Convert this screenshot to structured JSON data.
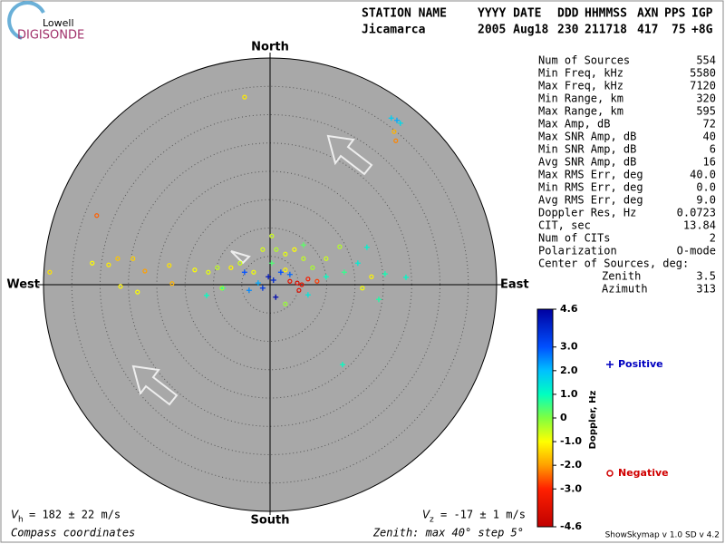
{
  "logo": {
    "top": "Lowell",
    "bottom": "DIGISONDE"
  },
  "header": {
    "labels": [
      "STATION NAME",
      "YYYY DATE",
      "DDD",
      "HHMMSS",
      "AXN",
      "PPS",
      "IGP"
    ],
    "values": [
      "Jicamarca",
      "2005 Aug18",
      "230",
      "211718",
      "417",
      "75",
      "+8G"
    ]
  },
  "stats": {
    "rows": [
      [
        "Num of Sources",
        "554"
      ],
      [
        "Min Freq, kHz",
        "5580"
      ],
      [
        "Max Freq, kHz",
        "7120"
      ],
      [
        "Min Range, km",
        "320"
      ],
      [
        "Max Range, km",
        "595"
      ],
      [
        "Max Amp, dB",
        "72"
      ],
      [
        "Max SNR Amp, dB",
        "40"
      ],
      [
        "Min SNR Amp, dB",
        "6"
      ],
      [
        "Avg SNR Amp, dB",
        "16"
      ],
      [
        "Max RMS Err, deg",
        "40.0"
      ],
      [
        "Min RMS Err, deg",
        "0.0"
      ],
      [
        "Avg RMS Err, deg",
        "9.0"
      ],
      [
        "Doppler Res, Hz",
        "0.0723"
      ],
      [
        "CIT, sec",
        "13.84"
      ],
      [
        "Num of CITs",
        "2"
      ],
      [
        "Polarization",
        "O-mode"
      ]
    ],
    "center_title": "Center of Sources, deg:",
    "center_rows": [
      [
        "Zenith",
        "3.5"
      ],
      [
        "Azimuth",
        "313"
      ]
    ]
  },
  "chart_data": {
    "type": "skymap",
    "compass": {
      "north": "North",
      "south": "South",
      "east": "East",
      "west": "West"
    },
    "rlim": [
      0,
      40
    ],
    "rticks": [
      5,
      10,
      15,
      20,
      25,
      30,
      35
    ],
    "colorbar": {
      "title": "Doppler, Hz",
      "lim": [
        -4.6,
        4.6
      ],
      "ticks": [
        {
          "value": 4.6,
          "label": "4.6"
        },
        {
          "value": 3,
          "label": "3.0"
        },
        {
          "value": 2,
          "label": "2.0"
        },
        {
          "value": 1,
          "label": "1.0"
        },
        0,
        {
          "value": -1,
          "label": "-1.0"
        },
        {
          "value": -2,
          "label": "-2.0"
        },
        {
          "value": -3,
          "label": "-3.0"
        },
        {
          "value": -4.6,
          "label": "-4.6"
        }
      ],
      "colormap": [
        {
          "value": -4.6,
          "color": "#c00000"
        },
        {
          "value": -3,
          "color": "#ff2000"
        },
        {
          "value": -2,
          "color": "#ffa000"
        },
        {
          "value": -1,
          "color": "#ffff00"
        },
        {
          "value": 0,
          "color": "#80ff40"
        },
        {
          "value": 1,
          "color": "#00ffc0"
        },
        {
          "value": 2,
          "color": "#00c0ff"
        },
        {
          "value": 3,
          "color": "#0050ff"
        },
        {
          "value": 4.6,
          "color": "#0000a0"
        }
      ]
    },
    "series": [
      {
        "name": "Positive",
        "marker": "+",
        "color": "#0000c0",
        "x": [
          21.4,
          22.4,
          23.0,
          17.1,
          20.3,
          24.0,
          19.2,
          12.8,
          -11.2,
          -8.3,
          -3.7,
          -1.3,
          -0.3,
          0.6,
          1.9,
          1.0,
          3.5,
          6.7,
          9.9,
          13.1,
          15.5,
          0.3,
          5.9,
          -4.5,
          -2.1
        ],
        "y": [
          29.4,
          29.0,
          28.5,
          6.6,
          1.9,
          1.3,
          -2.6,
          -14.1,
          -1.9,
          -0.6,
          -1.0,
          -0.6,
          1.4,
          0.8,
          2.2,
          -2.2,
          1.8,
          -1.8,
          1.4,
          2.2,
          3.8,
          3.8,
          7.0,
          2.2,
          0.3
        ],
        "doppler": [
          1.8,
          2.2,
          1.6,
          1.2,
          0.9,
          1.1,
          0.8,
          1.0,
          1.0,
          0.7,
          2.5,
          3.5,
          4.2,
          3.8,
          3.0,
          4.4,
          2.8,
          1.4,
          1.0,
          0.6,
          1.3,
          0.4,
          0.3,
          3.0,
          2.2
        ]
      },
      {
        "name": "Negative",
        "marker": "o",
        "color": "#d00000",
        "x": [
          -4.5,
          -30.6,
          -38.9,
          -31.4,
          -28.5,
          -26.9,
          -24.2,
          -22.1,
          -26.4,
          -23.4,
          -17.8,
          -17.3,
          -13.3,
          -10.9,
          -9.3,
          -6.9,
          -5.3,
          -2.9,
          -1.3,
          1.1,
          2.7,
          4.3,
          5.9,
          7.5,
          9.9,
          12.3,
          2.7,
          3.5,
          4.8,
          5.6,
          5.1,
          6.7,
          8.3,
          2.7,
          16.3,
          17.9,
          21.9,
          22.2,
          0.3,
          -8.5
        ],
        "y": [
          33.1,
          12.2,
          2.2,
          3.8,
          3.5,
          4.6,
          4.6,
          2.4,
          -0.3,
          -1.3,
          3.4,
          0.2,
          2.6,
          2.2,
          3.0,
          3.0,
          3.8,
          2.2,
          6.2,
          6.2,
          5.4,
          6.2,
          4.6,
          3.0,
          4.6,
          6.7,
          2.6,
          0.6,
          0.3,
          0,
          -1.0,
          1.0,
          0.6,
          -3.4,
          -0.6,
          1.4,
          27.0,
          25.4,
          8.6,
          -0.6
        ],
        "doppler": [
          -1.2,
          -2.5,
          -1.3,
          -1.0,
          -1.2,
          -1.6,
          -1.5,
          -2.0,
          -1.1,
          -1.0,
          -1.3,
          -1.8,
          -1.0,
          -0.8,
          -0.5,
          -1.1,
          -0.6,
          -0.9,
          -0.7,
          -0.4,
          -0.8,
          -1.0,
          -0.5,
          -0.3,
          -0.6,
          -0.4,
          -1.1,
          -3.6,
          -4.0,
          -3.5,
          -3.8,
          -3.2,
          -2.8,
          -0.2,
          -0.9,
          -1.1,
          -1.8,
          -2.2,
          -0.6,
          -0.2
        ]
      }
    ]
  },
  "footer": {
    "vh_symbol": "V",
    "vh_sub": "h",
    "vh_text": "= 182 ± 22 m/s",
    "vz_symbol": "V",
    "vz_sub": "z",
    "vz_text": "= -17 ± 1 m/s",
    "coords": "Compass coordinates",
    "zenith": "Zenith: max 40°  step 5°",
    "version": "ShowSkymap v 1.0  SD v 4.2"
  }
}
